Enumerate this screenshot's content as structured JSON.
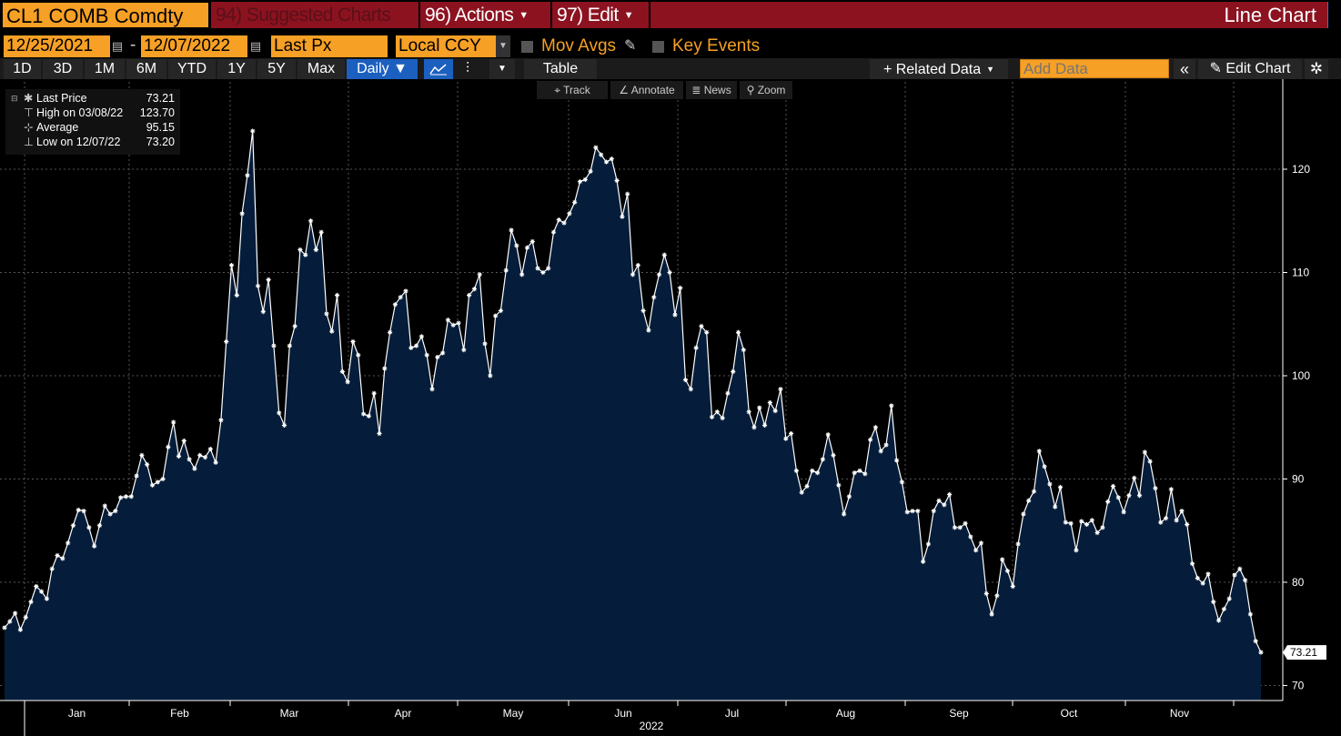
{
  "header": {
    "ticker": "CL1 COMB Comdty",
    "suggested_charts": "94) Suggested Charts",
    "actions": "96) Actions",
    "edit": "97) Edit",
    "chart_type": "Line Chart"
  },
  "controls": {
    "start_date": "12/25/2021",
    "date_separator": "-",
    "end_date": "12/07/2022",
    "field": "Last Px",
    "currency": "Local CCY",
    "mov_avgs": "Mov Avgs",
    "key_events": "Key Events"
  },
  "toolbar": {
    "ranges": [
      "1D",
      "3D",
      "1M",
      "6M",
      "YTD",
      "1Y",
      "5Y",
      "Max"
    ],
    "frequency": "Daily ▼",
    "table": "Table",
    "related_data": "+ Related Data",
    "add_data_placeholder": "Add Data",
    "collapse": "«",
    "edit_chart": "Edit Chart"
  },
  "chart_tools": {
    "track": "Track",
    "annotate": "Annotate",
    "news": "News",
    "zoom": "Zoom"
  },
  "legend": [
    {
      "label": "Last Price",
      "value": "73.21",
      "icon": "asterisk-icon"
    },
    {
      "label": "High on 03/08/22",
      "value": "123.70",
      "icon": "high-marker-icon"
    },
    {
      "label": "Average",
      "value": "95.15",
      "icon": "average-marker-icon"
    },
    {
      "label": "Low on 12/07/22",
      "value": "73.20",
      "icon": "low-marker-icon"
    }
  ],
  "colors": {
    "accent": "#f6a025",
    "header_red": "#8c1220",
    "area_fill": "#051d3a",
    "line": "#ffffff",
    "active_blue": "#1b5fbf"
  },
  "chart_data": {
    "type": "area",
    "title": "CL1 COMB Comdty - Last Price",
    "xlabel": "2022",
    "ylabel": "",
    "ylim": [
      68,
      128
    ],
    "yticks": [
      70,
      80,
      90,
      100,
      110,
      120
    ],
    "month_labels": [
      "Jan",
      "Feb",
      "Mar",
      "Apr",
      "May",
      "Jun",
      "Jul",
      "Aug",
      "Sep",
      "Oct",
      "Nov"
    ],
    "year_label": "2022",
    "last_value_label": "73.21",
    "grid": true,
    "legend_position": "top-left",
    "series": [
      {
        "name": "Last Price",
        "values": [
          75.6,
          76.2,
          77.0,
          75.4,
          76.6,
          78.1,
          79.6,
          79.1,
          78.4,
          81.3,
          82.6,
          82.3,
          83.8,
          85.5,
          87.0,
          86.9,
          85.3,
          83.5,
          85.5,
          87.4,
          86.6,
          86.9,
          88.2,
          88.3,
          88.3,
          90.3,
          92.3,
          91.4,
          89.4,
          89.7,
          90.0,
          93.1,
          95.5,
          92.2,
          93.7,
          91.9,
          91.0,
          92.3,
          92.1,
          92.9,
          91.6,
          95.7,
          103.3,
          110.7,
          107.8,
          115.7,
          119.4,
          123.7,
          108.7,
          106.2,
          109.3,
          102.9,
          96.4,
          95.2,
          102.9,
          104.8,
          112.2,
          111.7,
          115.0,
          112.2,
          113.9,
          106.0,
          104.3,
          107.8,
          100.4,
          99.4,
          103.3,
          102.0,
          96.3,
          96.1,
          98.3,
          94.4,
          100.7,
          104.2,
          106.9,
          107.6,
          108.2,
          102.7,
          102.9,
          103.8,
          102.0,
          98.7,
          101.8,
          102.2,
          105.4,
          104.9,
          105.1,
          102.5,
          107.8,
          108.4,
          109.8,
          103.1,
          100.0,
          105.8,
          106.3,
          110.2,
          114.1,
          112.6,
          109.8,
          112.4,
          113.0,
          110.4,
          110.0,
          110.4,
          113.9,
          115.1,
          114.8,
          115.7,
          116.8,
          118.8,
          119.0,
          119.8,
          122.1,
          121.4,
          120.7,
          121.0,
          118.9,
          115.4,
          117.6,
          109.8,
          110.7,
          106.3,
          104.4,
          107.6,
          109.8,
          111.7,
          110.0,
          105.9,
          108.5,
          99.6,
          98.7,
          102.7,
          104.8,
          104.2,
          96.0,
          96.5,
          95.9,
          98.3,
          100.4,
          104.2,
          102.5,
          96.5,
          95.0,
          96.9,
          95.2,
          97.4,
          96.6,
          98.7,
          93.9,
          94.4,
          90.8,
          88.7,
          89.3,
          90.8,
          90.6,
          91.9,
          94.3,
          92.3,
          89.4,
          86.6,
          88.3,
          90.6,
          90.8,
          90.5,
          93.8,
          95.0,
          92.7,
          93.3,
          97.1,
          91.8,
          89.7,
          86.8,
          86.9,
          86.9,
          82.0,
          83.7,
          86.9,
          87.9,
          87.5,
          88.5,
          85.3,
          85.3,
          85.7,
          84.4,
          83.1,
          83.8,
          78.9,
          76.9,
          78.7,
          82.2,
          81.1,
          79.6,
          83.7,
          86.6,
          87.9,
          88.8,
          92.7,
          91.2,
          89.5,
          87.3,
          89.2,
          85.8,
          85.7,
          83.1,
          85.9,
          85.6,
          86.0,
          84.8,
          85.3,
          87.8,
          89.3,
          88.2,
          86.8,
          88.4,
          90.1,
          88.4,
          92.6,
          91.7,
          89.1,
          85.8,
          86.2,
          89.0,
          86.0,
          86.9,
          85.6,
          81.8,
          80.4,
          79.9,
          80.8,
          78.1,
          76.3,
          77.4,
          78.4,
          80.7,
          81.3,
          80.2,
          76.9,
          74.3,
          73.21
        ]
      }
    ]
  }
}
